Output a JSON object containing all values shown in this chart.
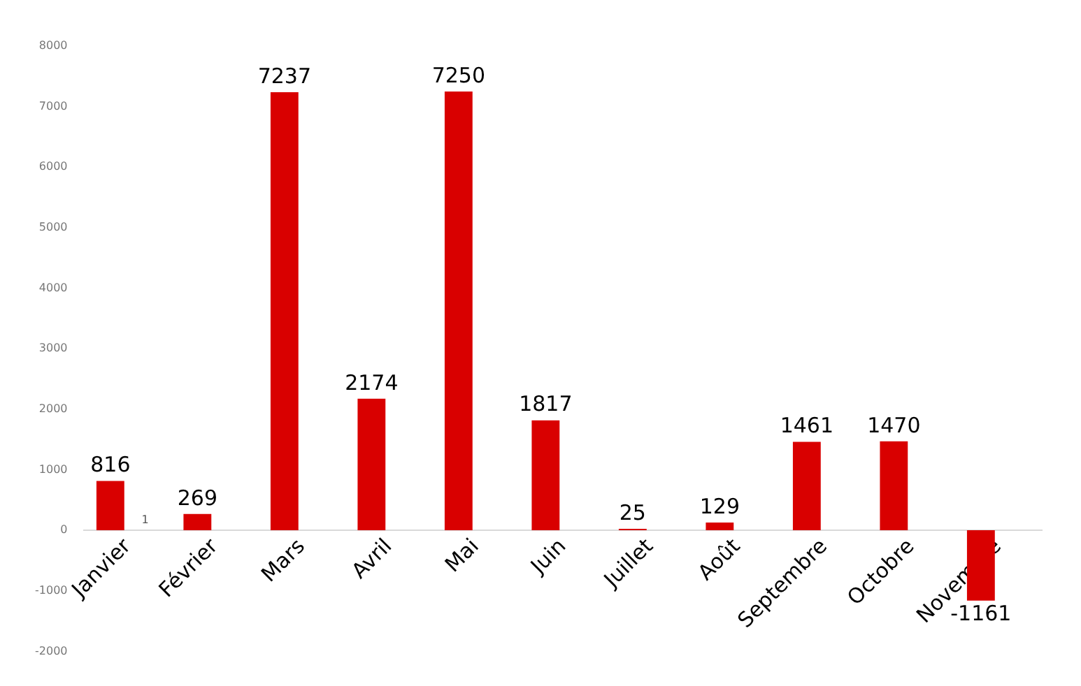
{
  "chart_data": {
    "type": "bar",
    "categories": [
      "Janvier",
      "Février",
      "Mars",
      "Avril",
      "Mai",
      "Juin",
      "Juillet",
      "Août",
      "Septembre",
      "Octobre",
      "Novembre"
    ],
    "series": [
      {
        "color": "#d90000",
        "values": [
          816,
          269,
          7237,
          2174,
          7250,
          1817,
          25,
          129,
          1461,
          1470,
          -1161
        ]
      },
      {
        "color": "#e6b0b0",
        "values": [
          1,
          null,
          null,
          null,
          null,
          null,
          null,
          null,
          null,
          null,
          null
        ]
      }
    ],
    "ylim": [
      -2000,
      8000
    ],
    "yticks": [
      -2000,
      -1000,
      0,
      1000,
      2000,
      3000,
      4000,
      5000,
      6000,
      7000,
      8000
    ],
    "grid": false,
    "legend": false,
    "data_labels": true
  }
}
